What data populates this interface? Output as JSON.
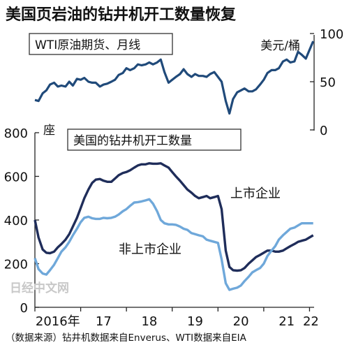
{
  "chart_data": [
    {
      "type": "line",
      "title": "美国页岩油的钻井机开工数量恢复",
      "subtitle": "WTI原油期货、月线",
      "unit_label": "美元/桶",
      "ylim": [
        0,
        100
      ],
      "yticks": [
        0,
        50,
        100
      ],
      "series": [
        {
          "name": "",
          "color": "#204a7a",
          "x": [
            2016.0,
            2016.08,
            2016.17,
            2016.25,
            2016.33,
            2016.42,
            2016.5,
            2016.58,
            2016.67,
            2016.75,
            2016.83,
            2016.92,
            2017.0,
            2017.08,
            2017.17,
            2017.25,
            2017.33,
            2017.42,
            2017.5,
            2017.58,
            2017.67,
            2017.75,
            2017.83,
            2017.92,
            2018.0,
            2018.08,
            2018.17,
            2018.25,
            2018.33,
            2018.42,
            2018.5,
            2018.58,
            2018.67,
            2018.75,
            2018.83,
            2018.92,
            2019.0,
            2019.08,
            2019.17,
            2019.25,
            2019.33,
            2019.42,
            2019.5,
            2019.58,
            2019.67,
            2019.75,
            2019.83,
            2019.92,
            2020.0,
            2020.08,
            2020.17,
            2020.25,
            2020.33,
            2020.42,
            2020.5,
            2020.58,
            2020.67,
            2020.75,
            2020.83,
            2020.92,
            2021.0,
            2021.08,
            2021.17,
            2021.25,
            2021.33,
            2021.42,
            2021.5,
            2021.58,
            2021.67,
            2021.75,
            2021.83,
            2021.92,
            2022.0,
            2022.08
          ],
          "values": [
            31,
            30,
            38,
            41,
            47,
            49,
            45,
            46,
            45,
            50,
            46,
            53,
            52,
            54,
            50,
            49,
            49,
            45,
            47,
            48,
            50,
            52,
            57,
            59,
            64,
            62,
            64,
            68,
            67,
            68,
            70,
            68,
            70,
            73,
            60,
            49,
            52,
            55,
            58,
            63,
            58,
            55,
            58,
            56,
            56,
            55,
            58,
            60,
            55,
            50,
            30,
            17,
            32,
            39,
            41,
            43,
            40,
            40,
            42,
            47,
            52,
            59,
            62,
            62,
            64,
            71,
            73,
            70,
            71,
            81,
            78,
            74,
            83,
            92
          ]
        }
      ]
    },
    {
      "type": "line",
      "title": "美国的钻井机开工数量",
      "unit_label": "座",
      "xlabel_ticks": [
        "2016年",
        "17",
        "18",
        "19",
        "20",
        "21",
        "22"
      ],
      "ylim": [
        0,
        800
      ],
      "yticks": [
        0,
        200,
        400,
        600,
        800
      ],
      "xlim": [
        2016.0,
        2022.1
      ],
      "series": [
        {
          "name": "上市企业",
          "color": "#1f2d5a",
          "x": [
            2016.0,
            2016.08,
            2016.17,
            2016.25,
            2016.33,
            2016.42,
            2016.5,
            2016.58,
            2016.67,
            2016.75,
            2016.83,
            2016.92,
            2017.0,
            2017.08,
            2017.17,
            2017.25,
            2017.33,
            2017.42,
            2017.5,
            2017.58,
            2017.67,
            2017.75,
            2017.83,
            2017.92,
            2018.0,
            2018.08,
            2018.17,
            2018.25,
            2018.33,
            2018.42,
            2018.5,
            2018.58,
            2018.67,
            2018.75,
            2018.83,
            2018.92,
            2019.0,
            2019.08,
            2019.17,
            2019.25,
            2019.33,
            2019.42,
            2019.5,
            2019.58,
            2019.67,
            2019.75,
            2019.83,
            2019.92,
            2020.0,
            2020.08,
            2020.17,
            2020.25,
            2020.33,
            2020.42,
            2020.5,
            2020.58,
            2020.67,
            2020.75,
            2020.83,
            2020.92,
            2021.0,
            2021.08,
            2021.17,
            2021.25,
            2021.33,
            2021.42,
            2021.5,
            2021.58,
            2021.67,
            2021.75,
            2021.83,
            2021.92,
            2022.0,
            2022.08
          ],
          "values": [
            400,
            320,
            265,
            250,
            248,
            255,
            275,
            290,
            310,
            335,
            370,
            410,
            455,
            500,
            540,
            570,
            585,
            588,
            580,
            575,
            575,
            590,
            605,
            615,
            620,
            628,
            640,
            650,
            655,
            655,
            660,
            658,
            658,
            660,
            650,
            640,
            620,
            600,
            580,
            560,
            540,
            525,
            510,
            500,
            505,
            510,
            500,
            505,
            510,
            450,
            260,
            185,
            170,
            168,
            170,
            180,
            200,
            215,
            230,
            240,
            250,
            260,
            260,
            255,
            255,
            260,
            270,
            280,
            290,
            300,
            305,
            310,
            320,
            330
          ]
        },
        {
          "name": "非上市企业",
          "color": "#6fa8da",
          "x": [
            2016.0,
            2016.08,
            2016.17,
            2016.25,
            2016.33,
            2016.42,
            2016.5,
            2016.58,
            2016.67,
            2016.75,
            2016.83,
            2016.92,
            2017.0,
            2017.08,
            2017.17,
            2017.25,
            2017.33,
            2017.42,
            2017.5,
            2017.58,
            2017.67,
            2017.75,
            2017.83,
            2017.92,
            2018.0,
            2018.08,
            2018.17,
            2018.25,
            2018.33,
            2018.42,
            2018.5,
            2018.58,
            2018.67,
            2018.75,
            2018.83,
            2018.92,
            2019.0,
            2019.08,
            2019.17,
            2019.25,
            2019.33,
            2019.42,
            2019.5,
            2019.58,
            2019.67,
            2019.75,
            2019.83,
            2019.92,
            2020.0,
            2020.08,
            2020.17,
            2020.25,
            2020.33,
            2020.42,
            2020.5,
            2020.58,
            2020.67,
            2020.75,
            2020.83,
            2020.92,
            2021.0,
            2021.08,
            2021.17,
            2021.25,
            2021.33,
            2021.42,
            2021.5,
            2021.58,
            2021.67,
            2021.75,
            2021.83,
            2021.92,
            2022.0,
            2022.08
          ],
          "values": [
            225,
            175,
            155,
            150,
            170,
            195,
            225,
            255,
            275,
            300,
            330,
            360,
            390,
            410,
            415,
            408,
            405,
            405,
            410,
            408,
            410,
            415,
            425,
            440,
            450,
            465,
            480,
            482,
            485,
            490,
            495,
            475,
            440,
            400,
            385,
            380,
            380,
            378,
            370,
            360,
            355,
            340,
            335,
            330,
            325,
            310,
            305,
            300,
            295,
            220,
            110,
            80,
            85,
            90,
            100,
            120,
            140,
            160,
            170,
            180,
            200,
            235,
            260,
            280,
            310,
            330,
            345,
            360,
            365,
            375,
            385,
            385,
            385,
            385
          ]
        }
      ]
    }
  ],
  "source_note": "（数据来源）钻井机数据来自Enverus、WTI数据来自EIA",
  "watermark": "日经中文网"
}
